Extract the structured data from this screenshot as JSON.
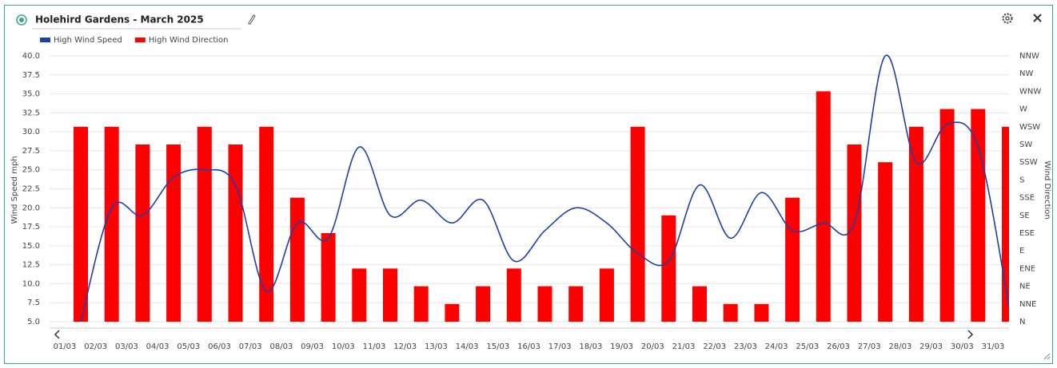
{
  "chart_data": {
    "type": "combo",
    "title": "Holehird Gardens - March 2025",
    "y_label": "Wind Speed mph",
    "y2_label": "Wind Direction",
    "categories": [
      "01/03",
      "02/03",
      "03/03",
      "04/03",
      "05/03",
      "06/03",
      "07/03",
      "08/03",
      "09/03",
      "10/03",
      "11/03",
      "12/03",
      "13/03",
      "14/03",
      "15/03",
      "16/03",
      "17/03",
      "18/03",
      "19/03",
      "20/03",
      "21/03",
      "22/03",
      "23/03",
      "24/03",
      "25/03",
      "26/03",
      "27/03",
      "28/03",
      "29/03",
      "30/03",
      "31/03"
    ],
    "series": [
      {
        "name": "High Wind Speed",
        "type": "line",
        "color": "#1f3fa8",
        "values": [
          5,
          20,
          19,
          24,
          25,
          23,
          9,
          18,
          16,
          28,
          19,
          21,
          18,
          21,
          13,
          17,
          20,
          18,
          14,
          13,
          23,
          16,
          22,
          17,
          18,
          18,
          40,
          26,
          31,
          28,
          7
        ]
      },
      {
        "name": "High Wind Direction",
        "type": "bar",
        "axis": "y2",
        "color": "#ff0000",
        "values": [
          247.5,
          247.5,
          225,
          225,
          247.5,
          225,
          247.5,
          157.5,
          112.5,
          67.5,
          67.5,
          45,
          22.5,
          45,
          67.5,
          45,
          45,
          67.5,
          247.5,
          135,
          45,
          22.5,
          22.5,
          157.5,
          292.5,
          225,
          202.5,
          247.5,
          270,
          270,
          247.5
        ]
      }
    ],
    "ylim": [
      5,
      40
    ],
    "yticks": [
      {
        "value": 5,
        "label": "5.0"
      },
      7.5,
      {
        "value": 10,
        "label": "10.0"
      },
      12.5,
      {
        "value": 15,
        "label": "15.0"
      },
      17.5,
      {
        "value": 20,
        "label": "20.0"
      },
      22.5,
      {
        "value": 25,
        "label": "25.0"
      },
      27.5,
      {
        "value": 30,
        "label": "30.0"
      },
      32.5,
      {
        "value": 35,
        "label": "35.0"
      },
      37.5,
      {
        "value": 40,
        "label": "40.0"
      }
    ],
    "y2lim": [
      0,
      337.5
    ],
    "y2ticks": [
      {
        "value": 0,
        "label": "N"
      },
      {
        "value": 22.5,
        "label": "NNE"
      },
      {
        "value": 45,
        "label": "NE"
      },
      {
        "value": 67.5,
        "label": "ENE"
      },
      {
        "value": 90,
        "label": "E"
      },
      {
        "value": 112.5,
        "label": "ESE"
      },
      {
        "value": 135,
        "label": "SE"
      },
      {
        "value": 157.5,
        "label": "SSE"
      },
      {
        "value": 180,
        "label": "S"
      },
      {
        "value": 202.5,
        "label": "SSW"
      },
      {
        "value": 225,
        "label": "SW"
      },
      {
        "value": 247.5,
        "label": "WSW"
      },
      {
        "value": 270,
        "label": "W"
      },
      {
        "value": 292.5,
        "label": "WNW"
      },
      {
        "value": 315,
        "label": "NW"
      },
      {
        "value": 337.5,
        "label": "NNW"
      }
    ],
    "grid": true
  }
}
